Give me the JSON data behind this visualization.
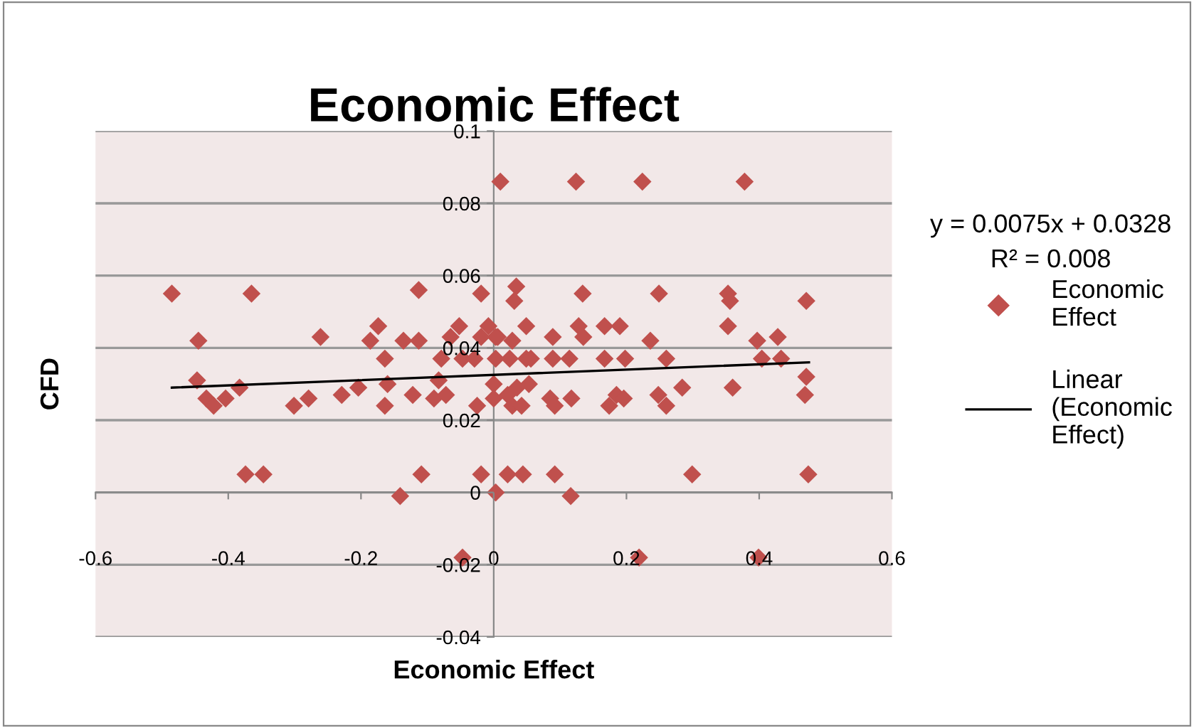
{
  "chart_data": {
    "type": "scatter",
    "title": "Economic Effect",
    "xlabel": "Economic Effect",
    "ylabel": "CFD",
    "xlim": [
      -0.6,
      0.6
    ],
    "xticks": [
      -0.6,
      -0.4,
      -0.2,
      0,
      0.2,
      0.4,
      0.6
    ],
    "ylim": [
      -0.04,
      0.1
    ],
    "yticks": [
      -0.04,
      -0.02,
      0,
      0.02,
      0.04,
      0.06,
      0.08,
      0.1
    ],
    "grid": "y",
    "legend": "right",
    "marker": "diamond",
    "series": [
      {
        "name": "Economic Effect",
        "color": "#c0504d",
        "x": [
          -0.485,
          -0.365,
          -0.445,
          -0.261,
          -0.447,
          -0.433,
          -0.422,
          -0.404,
          -0.383,
          -0.301,
          -0.279,
          -0.229,
          -0.204,
          -0.186,
          -0.174,
          -0.164,
          -0.16,
          -0.164,
          -0.136,
          -0.113,
          -0.113,
          -0.122,
          -0.09,
          -0.072,
          -0.083,
          -0.079,
          -0.065,
          -0.052,
          -0.047,
          -0.029,
          -0.019,
          -0.025,
          -0.019,
          -0.008,
          0.003,
          0.0,
          0.0,
          0.003,
          -0.374,
          -0.347,
          -0.141,
          -0.109,
          -0.019,
          0.003,
          -0.047,
          0.01,
          0.124,
          0.224,
          0.378,
          0.034,
          0.031,
          0.134,
          0.249,
          0.353,
          0.356,
          0.471,
          0.049,
          0.028,
          0.006,
          0.089,
          0.128,
          0.135,
          0.167,
          0.19,
          0.236,
          0.353,
          0.397,
          0.428,
          0.024,
          0.049,
          0.056,
          0.089,
          0.114,
          0.167,
          0.198,
          0.26,
          0.404,
          0.433,
          0.471,
          0.284,
          0.36,
          0.469,
          0.021,
          0.028,
          0.042,
          0.053,
          0.035,
          0.085,
          0.092,
          0.117,
          0.174,
          0.185,
          0.196,
          0.248,
          0.26,
          0.021,
          0.044,
          0.092,
          0.299,
          0.474,
          0.116,
          0.219,
          0.399
        ],
        "values": [
          0.055,
          0.055,
          0.042,
          0.043,
          0.031,
          0.026,
          0.024,
          0.026,
          0.029,
          0.024,
          0.026,
          0.027,
          0.029,
          0.042,
          0.046,
          0.037,
          0.03,
          0.024,
          0.042,
          0.042,
          0.056,
          0.027,
          0.026,
          0.027,
          0.031,
          0.037,
          0.043,
          0.046,
          0.037,
          0.037,
          0.055,
          0.024,
          0.043,
          0.046,
          0.037,
          0.03,
          0.026,
          0.043,
          0.005,
          0.005,
          -0.001,
          0.005,
          0.005,
          0.0,
          -0.018,
          0.086,
          0.086,
          0.086,
          0.086,
          0.057,
          0.053,
          0.055,
          0.055,
          0.055,
          0.053,
          0.053,
          0.046,
          0.042,
          0.043,
          0.043,
          0.046,
          0.043,
          0.046,
          0.046,
          0.042,
          0.046,
          0.042,
          0.043,
          0.037,
          0.037,
          0.037,
          0.037,
          0.037,
          0.037,
          0.037,
          0.037,
          0.037,
          0.037,
          0.032,
          0.029,
          0.029,
          0.027,
          0.027,
          0.024,
          0.024,
          0.03,
          0.029,
          0.026,
          0.024,
          0.026,
          0.024,
          0.027,
          0.026,
          0.027,
          0.024,
          0.005,
          0.005,
          0.005,
          0.005,
          0.005,
          -0.001,
          -0.018,
          -0.018
        ]
      },
      {
        "name": "Linear (Economic Effect)",
        "type": "line",
        "marker": "none",
        "color": "#000000",
        "x": [
          -0.485,
          0.475
        ],
        "values": [
          0.029,
          0.036
        ]
      }
    ],
    "annotations": [
      "y = 0.0075x + 0.0328",
      "R² = 0.008"
    ]
  }
}
